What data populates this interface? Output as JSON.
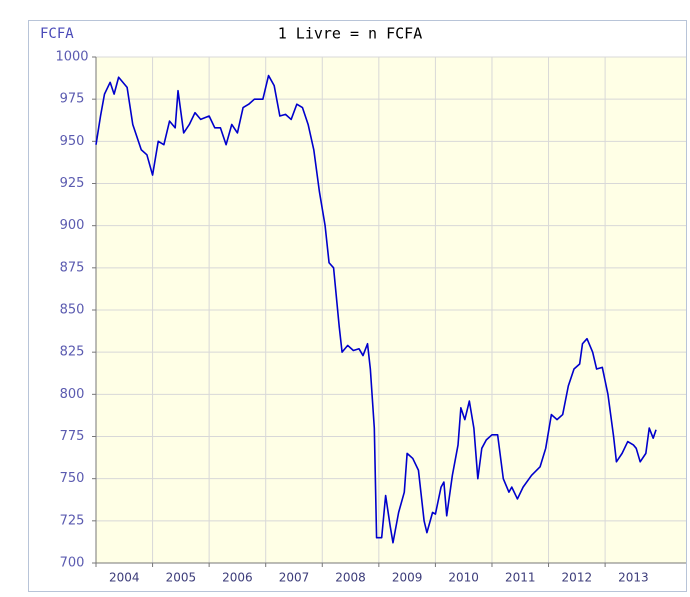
{
  "chart_data": {
    "type": "line",
    "title": "1 Livre = n FCFA",
    "y_label": "FCFA",
    "color": "#0000cc",
    "grid": true,
    "xlim": [
      2004,
      2014.43
    ],
    "ylim": [
      700,
      1000
    ],
    "xticks": [
      2004,
      2005,
      2006,
      2007,
      2008,
      2009,
      2010,
      2011,
      2012,
      2013
    ],
    "yticks": [
      700,
      725,
      750,
      775,
      800,
      825,
      850,
      875,
      900,
      925,
      950,
      975,
      1000
    ],
    "x": [
      2004.0,
      2004.08,
      2004.15,
      2004.25,
      2004.32,
      2004.4,
      2004.55,
      2004.65,
      2004.8,
      2004.9,
      2005.0,
      2005.1,
      2005.2,
      2005.3,
      2005.4,
      2005.45,
      2005.55,
      2005.65,
      2005.75,
      2005.85,
      2006.0,
      2006.1,
      2006.2,
      2006.3,
      2006.4,
      2006.5,
      2006.6,
      2006.7,
      2006.8,
      2006.95,
      2007.05,
      2007.15,
      2007.25,
      2007.35,
      2007.45,
      2007.55,
      2007.65,
      2007.75,
      2007.85,
      2007.95,
      2008.05,
      2008.12,
      2008.2,
      2008.3,
      2008.35,
      2008.45,
      2008.55,
      2008.65,
      2008.72,
      2008.8,
      2008.85,
      2008.92,
      2008.96,
      2009.05,
      2009.12,
      2009.2,
      2009.25,
      2009.35,
      2009.45,
      2009.5,
      2009.6,
      2009.7,
      2009.8,
      2009.85,
      2009.95,
      2010.0,
      2010.1,
      2010.15,
      2010.2,
      2010.3,
      2010.4,
      2010.45,
      2010.52,
      2010.6,
      2010.68,
      2010.75,
      2010.82,
      2010.9,
      2011.0,
      2011.1,
      2011.2,
      2011.3,
      2011.35,
      2011.45,
      2011.55,
      2011.7,
      2011.85,
      2011.95,
      2012.05,
      2012.15,
      2012.25,
      2012.35,
      2012.45,
      2012.55,
      2012.6,
      2012.68,
      2012.78,
      2012.85,
      2012.95,
      2013.05,
      2013.15,
      2013.2,
      2013.3,
      2013.4,
      2013.5,
      2013.55,
      2013.62,
      2013.72,
      2013.78,
      2013.85,
      2013.9
    ],
    "values": [
      948,
      965,
      978,
      985,
      978,
      988,
      982,
      960,
      945,
      942,
      930,
      950,
      948,
      962,
      958,
      980,
      955,
      960,
      967,
      963,
      965,
      958,
      958,
      948,
      960,
      955,
      970,
      972,
      975,
      975,
      989,
      983,
      965,
      966,
      963,
      972,
      970,
      960,
      945,
      920,
      900,
      878,
      875,
      840,
      825,
      829,
      826,
      827,
      823,
      830,
      815,
      780,
      715,
      715,
      740,
      722,
      712,
      730,
      742,
      765,
      762,
      755,
      725,
      718,
      730,
      729,
      745,
      748,
      728,
      752,
      770,
      792,
      785,
      796,
      780,
      750,
      768,
      773,
      776,
      776,
      750,
      742,
      745,
      738,
      745,
      752,
      757,
      768,
      788,
      785,
      788,
      805,
      815,
      818,
      830,
      833,
      825,
      815,
      816,
      800,
      775,
      760,
      765,
      772,
      770,
      768,
      760,
      765,
      780,
      774,
      779
    ]
  }
}
